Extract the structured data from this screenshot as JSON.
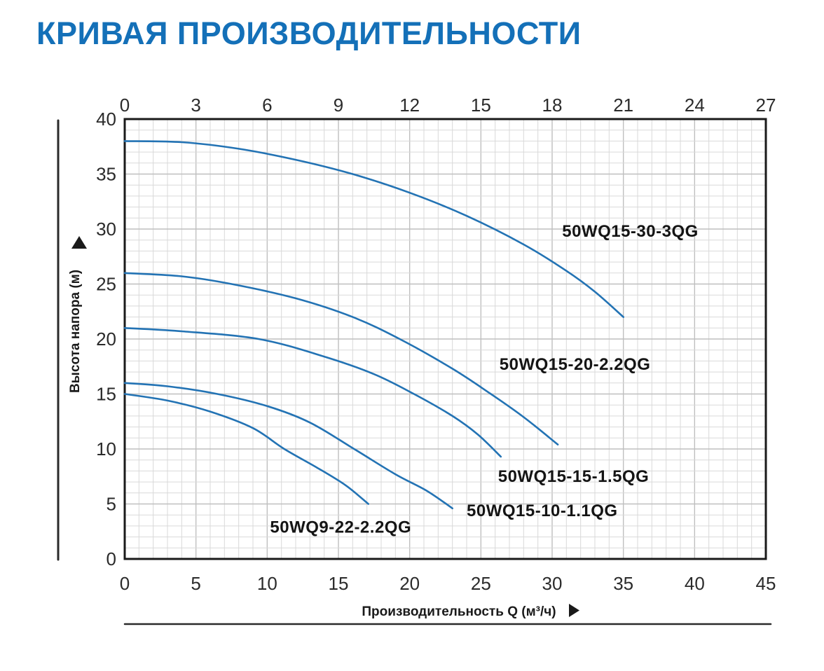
{
  "page": {
    "title": "КРИВАЯ ПРОИЗВОДИТЕЛЬНОСТИ"
  },
  "colors": {
    "title": "#1470b8",
    "curve": "#2373b4",
    "grid_minor": "#d9d9d9",
    "grid_major": "#bfbfbf",
    "plot_border": "#1a1a1a",
    "axis_text": "#2b2b2b",
    "curve_label_text": "#141414",
    "rule_line": "#2a2a2a"
  },
  "chart_data": {
    "type": "line",
    "title": "КРИВАЯ ПРОИЗВОДИТЕЛЬНОСТИ",
    "xlabel": "Производительность Q (м³/ч)",
    "ylabel": "Высота напора (м)",
    "x_bottom": {
      "min": 0,
      "max": 45,
      "ticks": [
        0,
        5,
        10,
        15,
        20,
        25,
        30,
        35,
        40,
        45
      ]
    },
    "x_top": {
      "min": 0,
      "max": 27,
      "ticks": [
        0,
        3,
        6,
        9,
        12,
        15,
        18,
        21,
        24,
        27
      ]
    },
    "y": {
      "min": 0,
      "max": 40,
      "ticks": [
        0,
        5,
        10,
        15,
        20,
        25,
        30,
        35,
        40
      ]
    },
    "grid": {
      "on": true,
      "minor_step_x": 1,
      "minor_step_y": 1,
      "major_step_x": 5,
      "major_step_y": 5
    },
    "legend_position": "inline-labels",
    "series": [
      {
        "name": "50WQ15-30-3QG",
        "points": [
          [
            0,
            38
          ],
          [
            4,
            37.9
          ],
          [
            8,
            37.3
          ],
          [
            12,
            36.3
          ],
          [
            16,
            35.0
          ],
          [
            20,
            33.3
          ],
          [
            24,
            31.2
          ],
          [
            28,
            28.6
          ],
          [
            31,
            26.2
          ],
          [
            33,
            24.3
          ],
          [
            35,
            22
          ]
        ],
        "label_pos": [
          30.7,
          29.3
        ]
      },
      {
        "name": "50WQ15-20-2.2QG",
        "points": [
          [
            0,
            26
          ],
          [
            4,
            25.7
          ],
          [
            7.5,
            25
          ],
          [
            12,
            23.7
          ],
          [
            16,
            22.0
          ],
          [
            19.3,
            20
          ],
          [
            23,
            17.3
          ],
          [
            25.7,
            15
          ],
          [
            28,
            12.9
          ],
          [
            30.4,
            10.4
          ]
        ],
        "label_pos": [
          26.3,
          17.2
        ]
      },
      {
        "name": "50WQ15-15-1.5QG",
        "points": [
          [
            0,
            21
          ],
          [
            4,
            20.7
          ],
          [
            9.4,
            20
          ],
          [
            14,
            18.4
          ],
          [
            17.5,
            16.8
          ],
          [
            20.3,
            15
          ],
          [
            23,
            13.0
          ],
          [
            24.8,
            11.3
          ],
          [
            26.4,
            9.3
          ]
        ],
        "label_pos": [
          26.2,
          7.0
        ]
      },
      {
        "name": "50WQ15-10-1.1QG",
        "points": [
          [
            0,
            16
          ],
          [
            3,
            15.7
          ],
          [
            6.5,
            15
          ],
          [
            10,
            13.9
          ],
          [
            13,
            12.4
          ],
          [
            16.1,
            10
          ],
          [
            19,
            7.7
          ],
          [
            21.2,
            6.2
          ],
          [
            23,
            4.6
          ]
        ],
        "label_pos": [
          24.0,
          3.9
        ]
      },
      {
        "name": "50WQ9-22-2.2QG",
        "points": [
          [
            0,
            15
          ],
          [
            3,
            14.4
          ],
          [
            6,
            13.4
          ],
          [
            9,
            11.9
          ],
          [
            11.2,
            10
          ],
          [
            13.5,
            8.3
          ],
          [
            15.5,
            6.7
          ],
          [
            17.1,
            5.0
          ]
        ],
        "label_pos": [
          10.2,
          2.4
        ]
      }
    ]
  }
}
